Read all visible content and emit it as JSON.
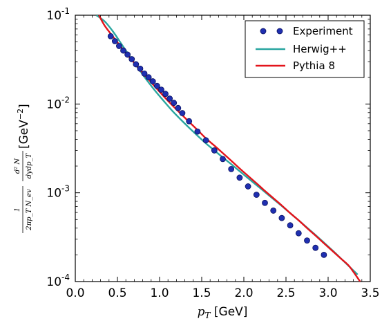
{
  "chart_data": {
    "type": "line",
    "x_axis": {
      "range": [
        0.0,
        3.5
      ],
      "ticks": [
        0.0,
        0.5,
        1.0,
        1.5,
        2.0,
        2.5,
        3.0,
        3.5
      ],
      "tick_labels": [
        "0.0",
        "0.5",
        "1.0",
        "1.5",
        "2.0",
        "2.5",
        "3.0",
        "3.5"
      ],
      "label_var": "p",
      "label_sub": "T",
      "label_unit": " [GeV]"
    },
    "y_axis": {
      "scale": "log",
      "range": [
        0.0001,
        0.1
      ],
      "ticks": [
        0.0001,
        0.001,
        0.01,
        0.1
      ],
      "tick_base": "10",
      "tick_exponents": [
        "-4",
        "-3",
        "-2",
        "-1"
      ],
      "label_frac_top": "1",
      "label_frac_bottom": "2πp_T N_ev",
      "label_frac2_top": "d² N",
      "label_frac2_bottom": "dydp_T",
      "label_unit_prefix": " [GeV",
      "label_unit_exp": "−2",
      "label_unit_suffix": "]"
    },
    "grid": false,
    "legend_position": "top-right",
    "series": [
      {
        "name": "Experiment",
        "type": "scatter",
        "color": "#1f2fb0",
        "x": [
          0.42,
          0.47,
          0.52,
          0.57,
          0.62,
          0.67,
          0.72,
          0.77,
          0.82,
          0.87,
          0.92,
          0.97,
          1.02,
          1.07,
          1.12,
          1.17,
          1.22,
          1.27,
          1.35,
          1.45,
          1.55,
          1.65,
          1.75,
          1.85,
          1.95,
          2.05,
          2.15,
          2.25,
          2.35,
          2.45,
          2.55,
          2.65,
          2.75,
          2.85,
          2.95
        ],
        "y": [
          0.058,
          0.051,
          0.045,
          0.04,
          0.036,
          0.032,
          0.028,
          0.025,
          0.022,
          0.02,
          0.018,
          0.016,
          0.0145,
          0.013,
          0.0115,
          0.0103,
          0.009,
          0.0079,
          0.0064,
          0.0049,
          0.0039,
          0.003,
          0.0024,
          0.00185,
          0.00148,
          0.00118,
          0.00095,
          0.00077,
          0.00063,
          0.00052,
          0.00043,
          0.00035,
          0.00029,
          0.00024,
          0.0002
        ]
      },
      {
        "name": "Herwig++",
        "type": "line",
        "color": "#2aa6a0",
        "x": [
          0.25,
          0.35,
          0.45,
          0.55,
          0.65,
          0.75,
          0.85,
          0.95,
          1.05,
          1.15,
          1.25,
          1.35,
          1.45,
          1.55,
          1.65,
          1.75,
          1.85,
          1.95,
          2.05,
          2.15,
          2.25,
          2.35,
          2.45,
          2.55,
          2.65,
          2.75,
          2.85,
          2.95,
          3.05,
          3.15,
          3.25,
          3.35
        ],
        "y": [
          0.1,
          0.085,
          0.065,
          0.047,
          0.034,
          0.025,
          0.0185,
          0.014,
          0.0108,
          0.0084,
          0.0067,
          0.0054,
          0.0044,
          0.0036,
          0.003,
          0.0025,
          0.0021,
          0.00175,
          0.00146,
          0.00122,
          0.00102,
          0.00085,
          0.00071,
          0.00059,
          0.00049,
          0.000405,
          0.000335,
          0.000275,
          0.000225,
          0.000183,
          0.000148,
          0.00012
        ]
      },
      {
        "name": "Pythia 8",
        "type": "line",
        "color": "#e3141b",
        "x": [
          0.28,
          0.35,
          0.45,
          0.55,
          0.65,
          0.75,
          0.85,
          0.95,
          1.05,
          1.15,
          1.25,
          1.35,
          1.45,
          1.55,
          1.65,
          1.75,
          1.85,
          1.95,
          2.05,
          2.15,
          2.25,
          2.35,
          2.45,
          2.55,
          2.65,
          2.75,
          2.85,
          2.95,
          3.05,
          3.15,
          3.25,
          3.38
        ],
        "y": [
          0.1,
          0.076,
          0.057,
          0.043,
          0.033,
          0.0255,
          0.0198,
          0.0155,
          0.0122,
          0.0097,
          0.0078,
          0.0063,
          0.0051,
          0.0041,
          0.0034,
          0.0028,
          0.0023,
          0.00188,
          0.00155,
          0.00128,
          0.00105,
          0.00087,
          0.00072,
          0.00059,
          0.00049,
          0.0004,
          0.00033,
          0.00027,
          0.000222,
          0.000182,
          0.000149,
          0.0001
        ]
      }
    ]
  }
}
